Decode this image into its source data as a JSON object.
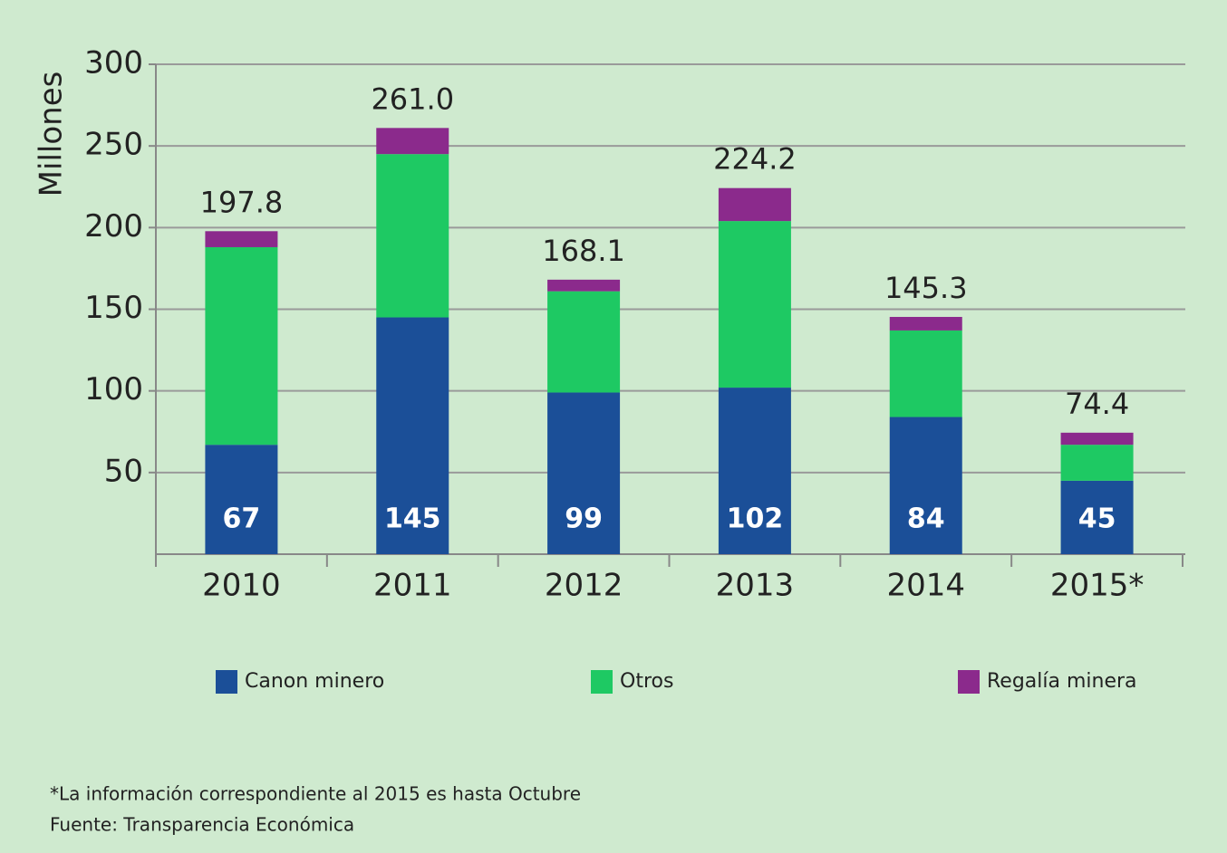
{
  "chart_data": {
    "type": "stacked_bar",
    "y_label": "Millones",
    "categories": [
      "2010",
      "2011",
      "2012",
      "2013",
      "2014",
      "2015*"
    ],
    "series": [
      {
        "name": "Canon minero",
        "color": "#1b4f98",
        "values": [
          67,
          145,
          99,
          102,
          84,
          45
        ]
      },
      {
        "name": "Otros",
        "color": "#1ec963",
        "values": [
          121,
          100,
          62,
          102,
          53,
          22
        ]
      },
      {
        "name": "Regalía minera",
        "color": "#8b2a8c",
        "values": [
          9.8,
          16,
          7.1,
          20.2,
          8.3,
          7.4
        ]
      }
    ],
    "totals": {
      "values": [
        197.8,
        261.0,
        168.1,
        224.2,
        145.3,
        74.4
      ],
      "value_labels": [
        "197.8",
        "261.0",
        "168.1",
        "224.2",
        "145.3",
        "74.4"
      ]
    },
    "ylim": [
      0,
      300
    ],
    "yticks": [
      50,
      100,
      150,
      200,
      250,
      300
    ],
    "grid": true,
    "legend": "bottom",
    "notes": [
      "*La información correspondiente al 2015 es hasta Octubre",
      "Fuente: Transparencia Económica"
    ]
  }
}
